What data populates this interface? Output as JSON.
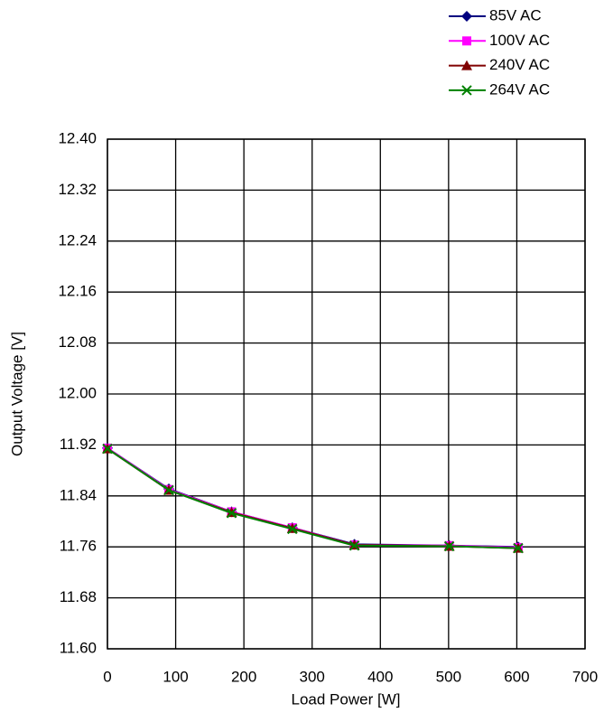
{
  "chart_data": {
    "type": "line",
    "x_label": "Load Power [W]",
    "y_label": "Output Voltage [V]",
    "xlim": [
      0,
      700
    ],
    "xticks": [
      0,
      100,
      200,
      300,
      400,
      500,
      600,
      700
    ],
    "ylim": [
      11.6,
      12.4
    ],
    "yticks": [
      {
        "value": 11.6,
        "label": "11.60"
      },
      11.68,
      11.76,
      11.84,
      11.92,
      {
        "value": 12.0,
        "label": "12.00"
      },
      12.08,
      12.16,
      12.24,
      12.32,
      {
        "value": 12.4,
        "label": "12.40"
      }
    ],
    "grid": true,
    "legend": "top-right",
    "series": [
      {
        "name": "85V AC",
        "color": "#000080",
        "marker": "diamond",
        "x": [
          0,
          90,
          182,
          271,
          362,
          501,
          602
        ],
        "values": [
          11.915,
          11.851,
          11.815,
          11.79,
          11.764,
          11.762,
          11.76
        ]
      },
      {
        "name": "100V AC",
        "color": "#ff00ff",
        "marker": "square",
        "x": [
          0,
          90,
          182,
          271,
          362,
          501,
          602
        ],
        "values": [
          11.915,
          11.85,
          11.815,
          11.79,
          11.763,
          11.762,
          11.759
        ]
      },
      {
        "name": "240V AC",
        "color": "#800000",
        "marker": "triangle",
        "x": [
          0,
          90,
          182,
          271,
          362,
          501,
          602
        ],
        "values": [
          11.914,
          11.849,
          11.814,
          11.789,
          11.763,
          11.761,
          11.758
        ]
      },
      {
        "name": "264V AC",
        "color": "#008000",
        "marker": "x",
        "x": [
          0,
          90,
          182,
          271,
          362,
          501,
          602
        ],
        "values": [
          11.914,
          11.849,
          11.813,
          11.788,
          11.762,
          11.761,
          11.758
        ]
      }
    ]
  }
}
